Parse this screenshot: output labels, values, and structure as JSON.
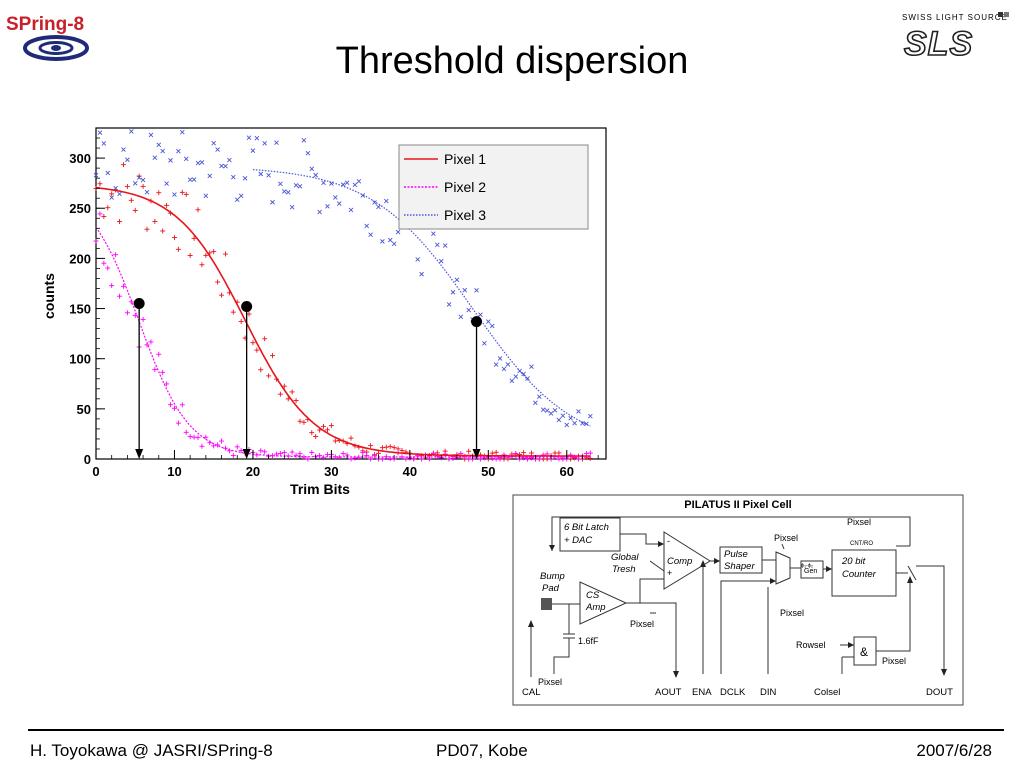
{
  "header": {
    "title": "Threshold dispersion",
    "logo_left_text": "SPring-8",
    "logo_right_text": "SWISS LIGHT SOURCE",
    "logo_right_mark": "SLS"
  },
  "chart_data": {
    "type": "scatter",
    "xlabel": "Trim Bits",
    "ylabel": "counts",
    "xlim": [
      0,
      65
    ],
    "ylim": [
      0,
      330
    ],
    "xticks": [
      "0",
      "10",
      "20",
      "30",
      "40",
      "50",
      "60"
    ],
    "yticks": [
      "0",
      "50",
      "100",
      "150",
      "200",
      "250",
      "300"
    ],
    "legend_position": "top-right",
    "series": [
      {
        "name": "Pixel 1",
        "color": "#e8141c",
        "fit": {
          "plateau": 274,
          "x50": 19,
          "width": 4.4,
          "floor": 3
        },
        "marker": "+"
      },
      {
        "name": "Pixel 2",
        "color": "#ff00ff",
        "fit": {
          "plateau": 272,
          "x50": 5.5,
          "width": 3.2,
          "floor": 2
        },
        "marker": "+"
      },
      {
        "name": "Pixel 3",
        "color": "#4a55d8",
        "fit": {
          "plateau": 292,
          "x50": 48,
          "width": 6.4,
          "floor": 8
        },
        "marker": "x"
      }
    ],
    "threshold_markers": [
      {
        "x": 5.5,
        "y": 155
      },
      {
        "x": 19.2,
        "y": 152
      },
      {
        "x": 48.5,
        "y": 137
      }
    ]
  },
  "diagram": {
    "title": "PILATUS II Pixel Cell",
    "blocks": {
      "latch": [
        "6 Bit Latch",
        "+ DAC"
      ],
      "comp": [
        "Comp"
      ],
      "shaper": [
        "Pulse",
        "Shaper"
      ],
      "gen": [
        "Gen"
      ],
      "counter": [
        "20 bit",
        "Counter"
      ],
      "csamp": [
        "CS",
        "Amp"
      ],
      "and": [
        "&"
      ]
    },
    "labels": {
      "global_tresh": [
        "Global",
        "Tresh"
      ],
      "bump_pad": [
        "Bump",
        "Pad"
      ],
      "cap": "1.6fF",
      "pixsel": "Pixsel",
      "cnt_ro": "CNT/RO",
      "rowsel": "Rowsel",
      "colsel": "Colsel",
      "gen_phase": "ϕ₁-ϕ₂",
      "minus": "-",
      "plus": "+"
    },
    "pins": [
      "CAL",
      "AOUT",
      "ENA",
      "DCLK",
      "DIN",
      "Colsel",
      "DOUT"
    ]
  },
  "footer": {
    "left": "H. Toyokawa @ JASRI/SPring-8",
    "center": "PD07, Kobe",
    "right": "2007/6/28"
  }
}
